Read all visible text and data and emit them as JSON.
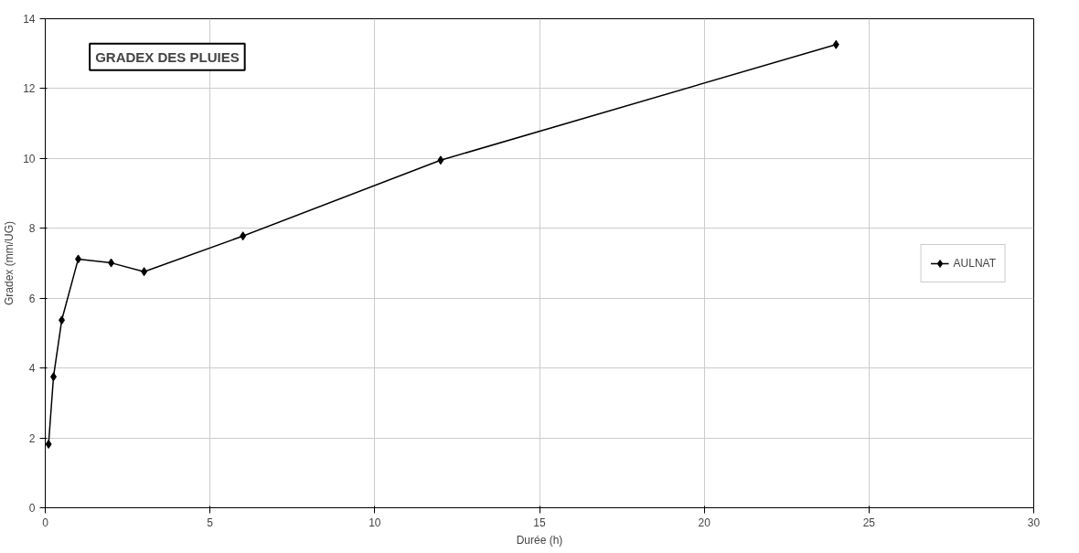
{
  "chart_data": {
    "type": "line",
    "title": "GRADEX DES PLUIES",
    "xlabel": "Durée (h)",
    "ylabel": "Gradex (mm/UG)",
    "x": [
      0.1,
      0.25,
      0.5,
      1,
      2,
      3,
      6,
      12,
      24
    ],
    "series": [
      {
        "name": "AULNAT",
        "color": "#000000",
        "values": [
          1.82,
          3.75,
          5.37,
          7.12,
          7.01,
          6.76,
          7.78,
          9.95,
          13.26
        ]
      }
    ],
    "xlim": [
      0,
      30
    ],
    "xticks": [
      0,
      5,
      10,
      15,
      20,
      25,
      30
    ],
    "ylim": [
      0,
      14
    ],
    "yticks": [
      0,
      2,
      4,
      6,
      8,
      10,
      12,
      14
    ],
    "grid": true,
    "legend": "right",
    "marker": "diamond",
    "line_style": "solid"
  }
}
